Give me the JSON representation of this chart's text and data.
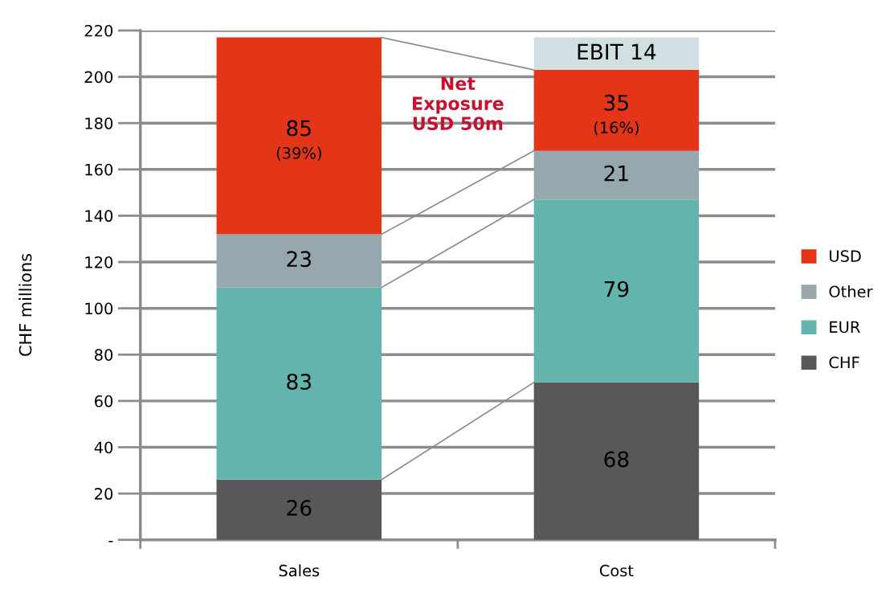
{
  "chart_data": {
    "type": "bar",
    "stacked": true,
    "ylabel": "CHF millions",
    "categories": [
      "Sales",
      "Cost"
    ],
    "series": [
      {
        "name": "CHF",
        "color": "#58585a",
        "values": [
          26,
          68
        ],
        "value_labels": [
          "26",
          "68"
        ]
      },
      {
        "name": "EUR",
        "color": "#62b4ad",
        "values": [
          83,
          79
        ],
        "value_labels": [
          "83",
          "79"
        ]
      },
      {
        "name": "Other",
        "color": "#96a7ae",
        "values": [
          23,
          21
        ],
        "value_labels": [
          "23",
          "21"
        ]
      },
      {
        "name": "USD",
        "color": "#e33517",
        "values": [
          85,
          35
        ],
        "value_labels": [
          "85\n(39%)",
          "35\n(16%)"
        ]
      },
      {
        "color": "#d0dfe2",
        "values": [
          null,
          14
        ],
        "value_labels": [
          null,
          "EBIT 14"
        ]
      }
    ],
    "ylim": [
      0,
      220
    ],
    "yticks": [
      {
        "value": 0,
        "label": "-"
      },
      20,
      40,
      60,
      80,
      100,
      120,
      140,
      160,
      180,
      200,
      220
    ],
    "grid": "y",
    "legend": "right",
    "annotations": [
      "Net\nExposure\nUSD 50m"
    ]
  }
}
